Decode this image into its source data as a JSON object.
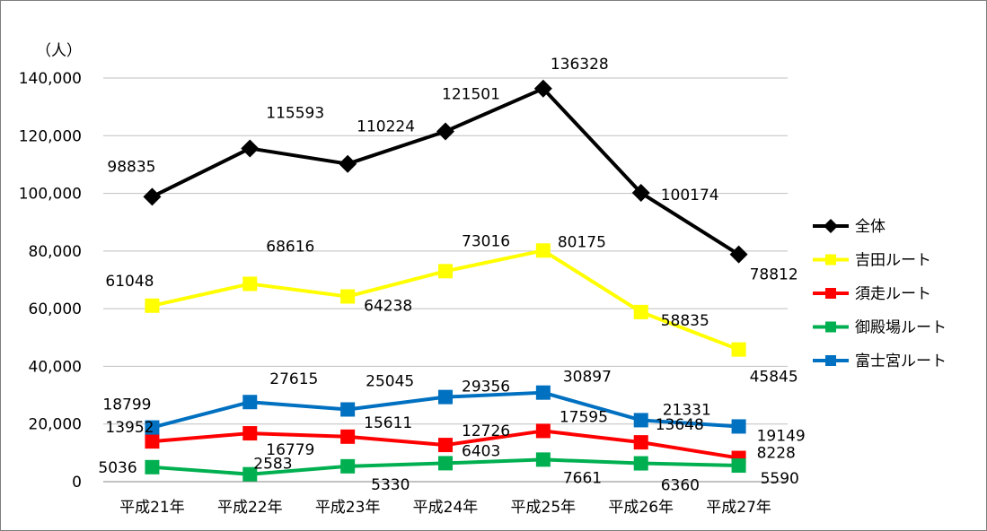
{
  "chart_data": {
    "type": "line",
    "unit_label": "（人）",
    "categories": [
      "平成21年",
      "平成22年",
      "平成23年",
      "平成24年",
      "平成25年",
      "平成26年",
      "平成27年"
    ],
    "ylim": [
      0,
      140000
    ],
    "yticks": [
      "0",
      "20,000",
      "40,000",
      "60,000",
      "80,000",
      "100,000",
      "120,000",
      "140,000"
    ],
    "grid": true,
    "legend_position": "right",
    "series": [
      {
        "name": "全体",
        "color": "#000000",
        "marker": "diamond",
        "values": [
          98835,
          115593,
          110224,
          121501,
          136328,
          100174,
          78812
        ],
        "labels": [
          "98835",
          "115593",
          "110224",
          "121501",
          "136328",
          "100174",
          "78812"
        ]
      },
      {
        "name": "吉田ルート",
        "color": "#ffff00",
        "marker": "square",
        "values": [
          61048,
          68616,
          64238,
          73016,
          80175,
          58835,
          45845
        ],
        "labels": [
          "61048",
          "68616",
          "64238",
          "73016",
          "80175",
          "58835",
          "45845"
        ]
      },
      {
        "name": "須走ルート",
        "color": "#ff0000",
        "marker": "square",
        "values": [
          13952,
          16779,
          15611,
          12726,
          17595,
          13648,
          8228
        ],
        "labels": [
          "13952",
          "16779",
          "15611",
          "12726",
          "17595",
          "13648",
          "8228"
        ]
      },
      {
        "name": "御殿場ルート",
        "color": "#00b050",
        "marker": "square",
        "values": [
          5036,
          2583,
          5330,
          6403,
          7661,
          6360,
          5590
        ],
        "labels": [
          "5036",
          "2583",
          "5330",
          "6403",
          "7661",
          "6360",
          "5590"
        ]
      },
      {
        "name": "富士宮ルート",
        "color": "#0070c0",
        "marker": "square",
        "values": [
          18799,
          27615,
          25045,
          29356,
          30897,
          21331,
          19149
        ],
        "labels": [
          "18799",
          "27615",
          "25045",
          "29356",
          "30897",
          "21331",
          "19149"
        ]
      }
    ]
  }
}
